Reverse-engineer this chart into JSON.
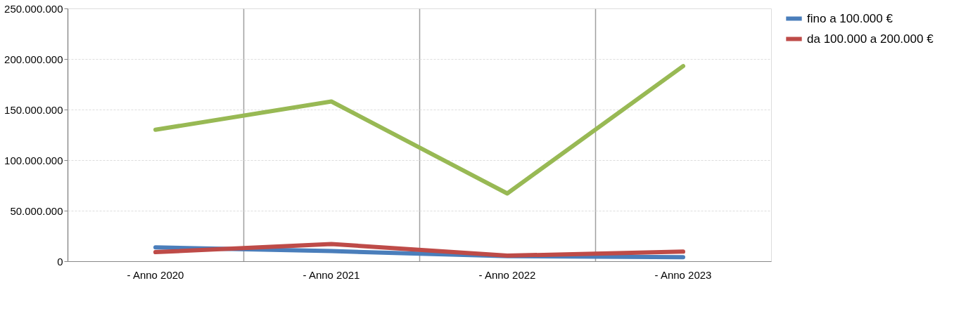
{
  "chart_data": {
    "type": "line",
    "categories": [
      "- Anno 2020",
      "- Anno 2021",
      "- Anno 2022",
      "- Anno 2023"
    ],
    "series": [
      {
        "name": "fino a 100.000 €",
        "color": "#4a7ebb",
        "values": [
          13700000,
          10000000,
          5000000,
          4000000
        ]
      },
      {
        "name": "da 100.000 a 200.000 €",
        "color": "#be4b48",
        "values": [
          9000000,
          17000000,
          5500000,
          9500000
        ]
      },
      {
        "color": "#98b954",
        "values": [
          130000000,
          158000000,
          67000000,
          193000000
        ]
      }
    ],
    "ylim": [
      0,
      250000000
    ],
    "yticks": [
      {
        "value": 0,
        "label": "0"
      },
      {
        "value": 50000000,
        "label": "50.000.000"
      },
      {
        "value": 100000000,
        "label": "100.000.000"
      },
      {
        "value": 150000000,
        "label": "150.000.000"
      },
      {
        "value": 200000000,
        "label": "200.000.000"
      },
      {
        "value": 250000000,
        "label": "250.000.000"
      }
    ],
    "grid": true,
    "legend": "right",
    "marker": "none",
    "line_style": "solid"
  }
}
